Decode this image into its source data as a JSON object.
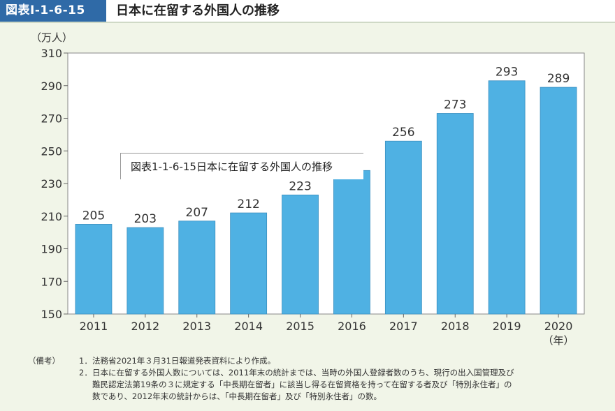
{
  "header": {
    "figure_id": "図表Ⅰ-1-6-15",
    "title": "日本に在留する外国人の推移"
  },
  "tooltip": {
    "text": "図表1-1-6-15日本に在留する外国人の推移"
  },
  "chart_data": {
    "type": "bar",
    "categories": [
      "2011",
      "2012",
      "2013",
      "2014",
      "2015",
      "2016",
      "2017",
      "2018",
      "2019",
      "2020"
    ],
    "values": [
      205,
      203,
      207,
      212,
      223,
      238,
      256,
      273,
      293,
      289
    ],
    "value_labels": [
      "205",
      "203",
      "207",
      "212",
      "223",
      "",
      "256",
      "273",
      "293",
      "289"
    ],
    "ylabel": "（万人）",
    "xunit": "（年）",
    "ylim": [
      150,
      310
    ],
    "yticks": [
      150,
      170,
      190,
      210,
      230,
      250,
      270,
      290,
      310
    ],
    "bar_color": "#4fb1e3",
    "grid": false
  },
  "notes": {
    "heading": "（備考）",
    "items": [
      {
        "num": "1．",
        "lines": [
          "法務省2021年３月31日報道発表資料により作成。"
        ]
      },
      {
        "num": "2．",
        "lines": [
          "日本に在留する外国人数については、2011年末の統計までは、当時の外国人登録者数のうち、現行の出入国管理及び",
          "難民認定法第19条の３に規定する「中長期在留者」に該当し得る在留資格を持って在留する者及び「特別永住者」の",
          "数であり、2012年末の統計からは、「中長期在留者」及び「特別永住者」の数。"
        ]
      }
    ]
  }
}
